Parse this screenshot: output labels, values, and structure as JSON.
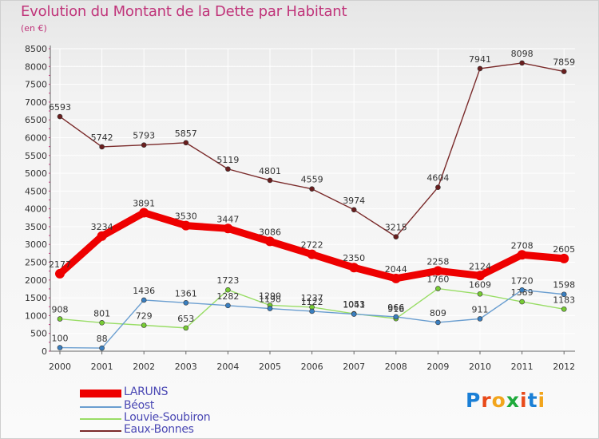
{
  "header": {
    "title": "Evolution du Montant de la Dette par Habitant",
    "subtitle": "(en €)"
  },
  "logo": {
    "text": "Proxiti",
    "colors": [
      "#1a7fd6",
      "#e84a1a",
      "#f2a51c",
      "#1faa3c",
      "#e84a1a",
      "#1a7fd6",
      "#f2a51c"
    ]
  },
  "colors": {
    "title": "#c0347a",
    "axis": "#555555",
    "grid": "#ffffff"
  },
  "chart_data": {
    "type": "line",
    "title": "Evolution du Montant de la Dette par Habitant",
    "subtitle": "(en €)",
    "x": [
      "2000",
      "2001",
      "2002",
      "2003",
      "2004",
      "2005",
      "2006",
      "2007",
      "2008",
      "2009",
      "2010",
      "2011",
      "2012"
    ],
    "ylim": [
      0,
      8500
    ],
    "yticks": [
      "0",
      "500",
      "1000",
      "1500",
      "2000",
      "2500",
      "3000",
      "3500",
      "4000",
      "4500",
      "5000",
      "5500",
      "6000",
      "6500",
      "7000",
      "7500",
      "8000",
      "8500"
    ],
    "grid": true,
    "legend_position": "bottom-left",
    "series": [
      {
        "name": "Eaux-Bonnes",
        "color": "#7a2a2a",
        "marker": "#6a1e1e",
        "width": "thin",
        "values": [
          6593,
          5742,
          5793,
          5857,
          5119,
          4801,
          4559,
          3974,
          3215,
          4604,
          7941,
          8098,
          7859
        ],
        "labels": [
          "6593",
          "5742",
          "5793",
          "5857",
          "5119",
          "4801",
          "4559",
          "3974",
          "3215",
          "4604",
          "7941",
          "8098",
          "7859"
        ]
      },
      {
        "name": "Louvie-Soubiron",
        "color": "#99dd66",
        "marker": "#77cc33",
        "width": "thin",
        "values": [
          908,
          801,
          729,
          653,
          1723,
          1290,
          1237,
          1053,
          916,
          1760,
          1609,
          1389,
          1183
        ],
        "labels": [
          "908",
          "801",
          "729",
          "653",
          "1723",
          "1290",
          "1237",
          "1053",
          "916",
          "1760",
          "1609",
          "1389",
          "1183"
        ]
      },
      {
        "name": "Béost",
        "color": "#6a9ed0",
        "marker": "#3a7fc0",
        "width": "thin",
        "values": [
          100,
          88,
          1436,
          1361,
          1282,
          1198,
          1122,
          1041,
          966,
          809,
          911,
          1720,
          1598
        ],
        "labels": [
          "100",
          "88",
          "1436",
          "1361",
          "1282",
          "1198",
          "1122",
          "1041",
          "966",
          "809",
          "911",
          "1720",
          "1598"
        ]
      },
      {
        "name": "LARUNS",
        "color": "#ee0000",
        "marker": "#ee0000",
        "width": "thick",
        "values": [
          2177,
          3234,
          3891,
          3530,
          3447,
          3086,
          2722,
          2350,
          2044,
          2258,
          2124,
          2708,
          2605
        ],
        "labels": [
          "2177",
          "3234",
          "3891",
          "3530",
          "3447",
          "3086",
          "2722",
          "2350",
          "2044",
          "2258",
          "2124",
          "2708",
          "2605"
        ]
      }
    ],
    "legend": [
      "LARUNS",
      "Béost",
      "Louvie-Soubiron",
      "Eaux-Bonnes"
    ]
  }
}
